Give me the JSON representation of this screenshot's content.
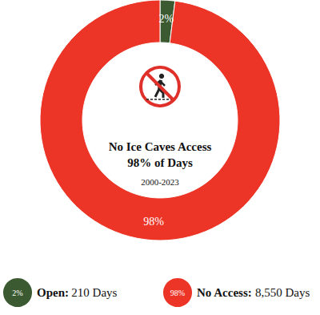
{
  "chart_data": {
    "type": "pie",
    "title": "No Ice Caves Access",
    "subtitle": "98% of Days",
    "annotation": "2000-2023",
    "categories": [
      "Open:",
      "No Access:"
    ],
    "values": [
      2,
      98
    ],
    "value_labels": [
      "2%",
      "98%"
    ],
    "colors": [
      "#3b5a31",
      "#ec3427"
    ],
    "days": [
      210,
      8550
    ],
    "days_labels": [
      "210 Days",
      "8,550 Days"
    ],
    "data_labels": true
  }
}
